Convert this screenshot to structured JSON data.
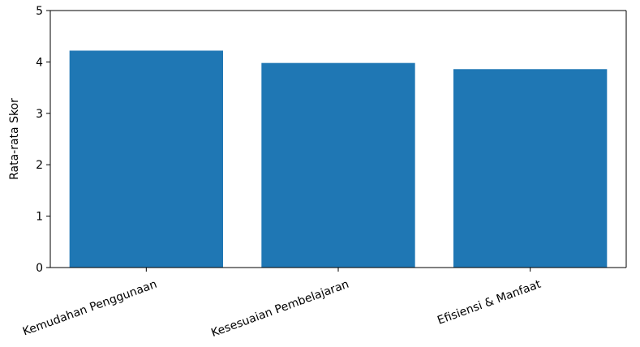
{
  "chart_data": {
    "type": "bar",
    "categories": [
      "Kemudahan Penggunaan",
      "Kesesuaian Pembelajaran",
      "Efisiensi & Manfaat"
    ],
    "values": [
      4.22,
      3.98,
      3.86
    ],
    "xlabel": "",
    "ylabel": "Rata-rata Skor",
    "ylim": [
      0,
      5
    ],
    "yticks": [
      "0",
      "1",
      "2",
      "3",
      "4",
      "5"
    ],
    "grid": false,
    "bar_color": "#1f77b4"
  }
}
